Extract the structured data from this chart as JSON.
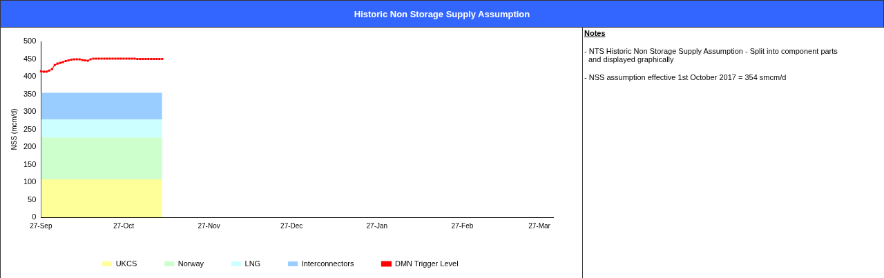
{
  "chart_data": {
    "type": "area",
    "title": "Historic Non Storage Supply Assumption",
    "ylabel": "NSS (mcm/d)",
    "stacked": true,
    "legend": "bottom",
    "grid": false,
    "xlim": [
      "2017-09-27",
      "2018-04-01"
    ],
    "xticks": [
      {
        "value": "2017-09-27",
        "label": "27-Sep"
      },
      {
        "value": "2017-10-27",
        "label": "27-Oct"
      },
      {
        "value": "2017-11-27",
        "label": "27-Nov"
      },
      {
        "value": "2017-12-27",
        "label": "27-Dec"
      },
      {
        "value": "2018-01-27",
        "label": "27-Jan"
      },
      {
        "value": "2018-02-27",
        "label": "27-Feb"
      },
      {
        "value": "2018-03-27",
        "label": "27-Mar"
      }
    ],
    "ylim": [
      0,
      500
    ],
    "yticks": [
      0,
      50,
      100,
      150,
      200,
      250,
      300,
      350,
      400,
      450,
      500
    ],
    "series": [
      {
        "name": "UKCS",
        "color": "#ffff99",
        "x": [
          "2017-09-27",
          "2017-11-10"
        ],
        "values": [
          108,
          108
        ]
      },
      {
        "name": "Norway",
        "color": "#ccffcc",
        "x": [
          "2017-09-27",
          "2017-11-10"
        ],
        "values": [
          119,
          119
        ]
      },
      {
        "name": "LNG",
        "color": "#ccffff",
        "x": [
          "2017-09-27",
          "2017-11-10"
        ],
        "values": [
          51,
          51
        ]
      },
      {
        "name": "Interconnectors",
        "color": "#99ccff",
        "x": [
          "2017-09-27",
          "2017-11-10"
        ],
        "values": [
          76,
          76
        ]
      },
      {
        "name": "DMN Trigger Level",
        "type": "line",
        "marker": "square",
        "color": "#ff0000",
        "x": [
          "2017-09-27",
          "2017-09-28",
          "2017-09-29",
          "2017-09-30",
          "2017-10-01",
          "2017-10-02",
          "2017-10-03",
          "2017-10-04",
          "2017-10-05",
          "2017-10-06",
          "2017-10-07",
          "2017-10-08",
          "2017-10-09",
          "2017-10-10",
          "2017-10-11",
          "2017-10-12",
          "2017-10-13",
          "2017-10-14",
          "2017-10-15",
          "2017-10-16",
          "2017-10-17",
          "2017-10-18",
          "2017-10-19",
          "2017-10-20",
          "2017-10-21",
          "2017-10-22",
          "2017-10-23",
          "2017-10-24",
          "2017-10-25",
          "2017-10-26",
          "2017-10-27",
          "2017-10-28",
          "2017-10-29",
          "2017-10-30",
          "2017-10-31",
          "2017-11-01",
          "2017-11-02",
          "2017-11-03",
          "2017-11-04",
          "2017-11-05",
          "2017-11-06",
          "2017-11-07",
          "2017-11-08",
          "2017-11-09",
          "2017-11-10"
        ],
        "values": [
          415,
          414,
          414,
          417,
          421,
          433,
          437,
          439,
          441,
          444,
          446,
          448,
          449,
          449,
          449,
          447,
          446,
          445,
          449,
          451,
          451,
          451,
          451,
          451,
          451,
          451,
          451,
          451,
          451,
          451,
          451,
          451,
          451,
          451,
          451,
          450,
          450,
          450,
          450,
          450,
          450,
          450,
          450,
          450,
          450
        ]
      }
    ],
    "annotations": [
      "Notes",
      "- NTS Historic Non Storage Supply Assumption - Split into component parts and displayed graphically",
      "- NSS assumption effective 1st October 2017 = 354 smcm/d"
    ]
  }
}
